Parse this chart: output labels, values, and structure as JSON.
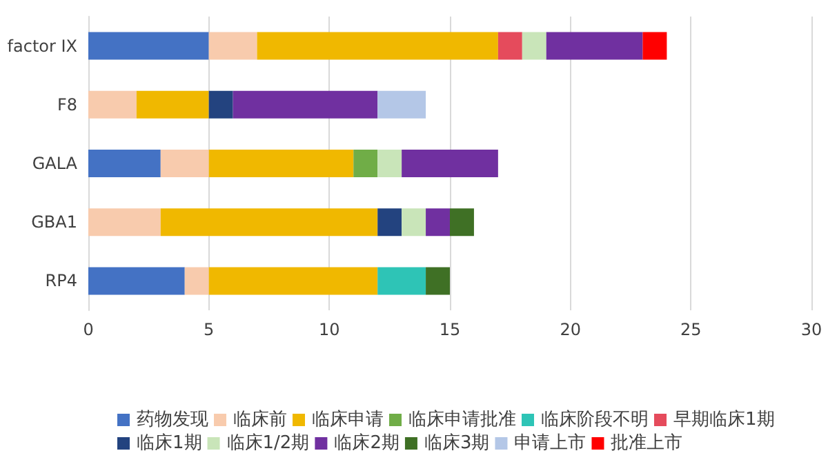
{
  "chart_data": {
    "type": "bar",
    "orientation": "horizontal",
    "stacked": true,
    "categories": [
      "factor IX",
      "F8",
      "GALA",
      "GBA1",
      "RP4"
    ],
    "series": [
      {
        "name": "药物发现",
        "color": "#4472c4",
        "values": [
          5,
          null,
          3,
          null,
          4
        ]
      },
      {
        "name": "临床前",
        "color": "#f8cbad",
        "values": [
          2,
          2,
          2,
          3,
          1
        ]
      },
      {
        "name": "临床申请",
        "color": "#f0b800",
        "values": [
          10,
          3,
          6,
          9,
          7
        ]
      },
      {
        "name": "临床申请批准",
        "color": "#70ad47",
        "values": [
          null,
          null,
          1,
          null,
          null
        ]
      },
      {
        "name": "临床阶段不明",
        "color": "#2ec4b6",
        "values": [
          null,
          null,
          null,
          null,
          2
        ]
      },
      {
        "name": "早期临床1期",
        "color": "#e54b5c",
        "values": [
          1,
          null,
          null,
          null,
          null
        ]
      },
      {
        "name": "临床1期",
        "color": "#23437f",
        "values": [
          null,
          1,
          null,
          1,
          null
        ]
      },
      {
        "name": "临床1/2期",
        "color": "#c9e5b9",
        "values": [
          1,
          null,
          1,
          1,
          null
        ]
      },
      {
        "name": "临床2期",
        "color": "#7030a0",
        "values": [
          4,
          6,
          4,
          1,
          null
        ]
      },
      {
        "name": "临床3期",
        "color": "#3f7025",
        "values": [
          null,
          null,
          null,
          1,
          1
        ]
      },
      {
        "name": "申请上市",
        "color": "#b4c7e7",
        "values": [
          null,
          2,
          null,
          null,
          null
        ]
      },
      {
        "name": "批准上市",
        "color": "#ff0000",
        "values": [
          1,
          null,
          null,
          null,
          null
        ]
      }
    ],
    "xlim": [
      0,
      30
    ],
    "xticks": [
      0,
      5,
      10,
      15,
      20,
      25,
      30
    ],
    "grid": "x",
    "legend": "bottom"
  }
}
